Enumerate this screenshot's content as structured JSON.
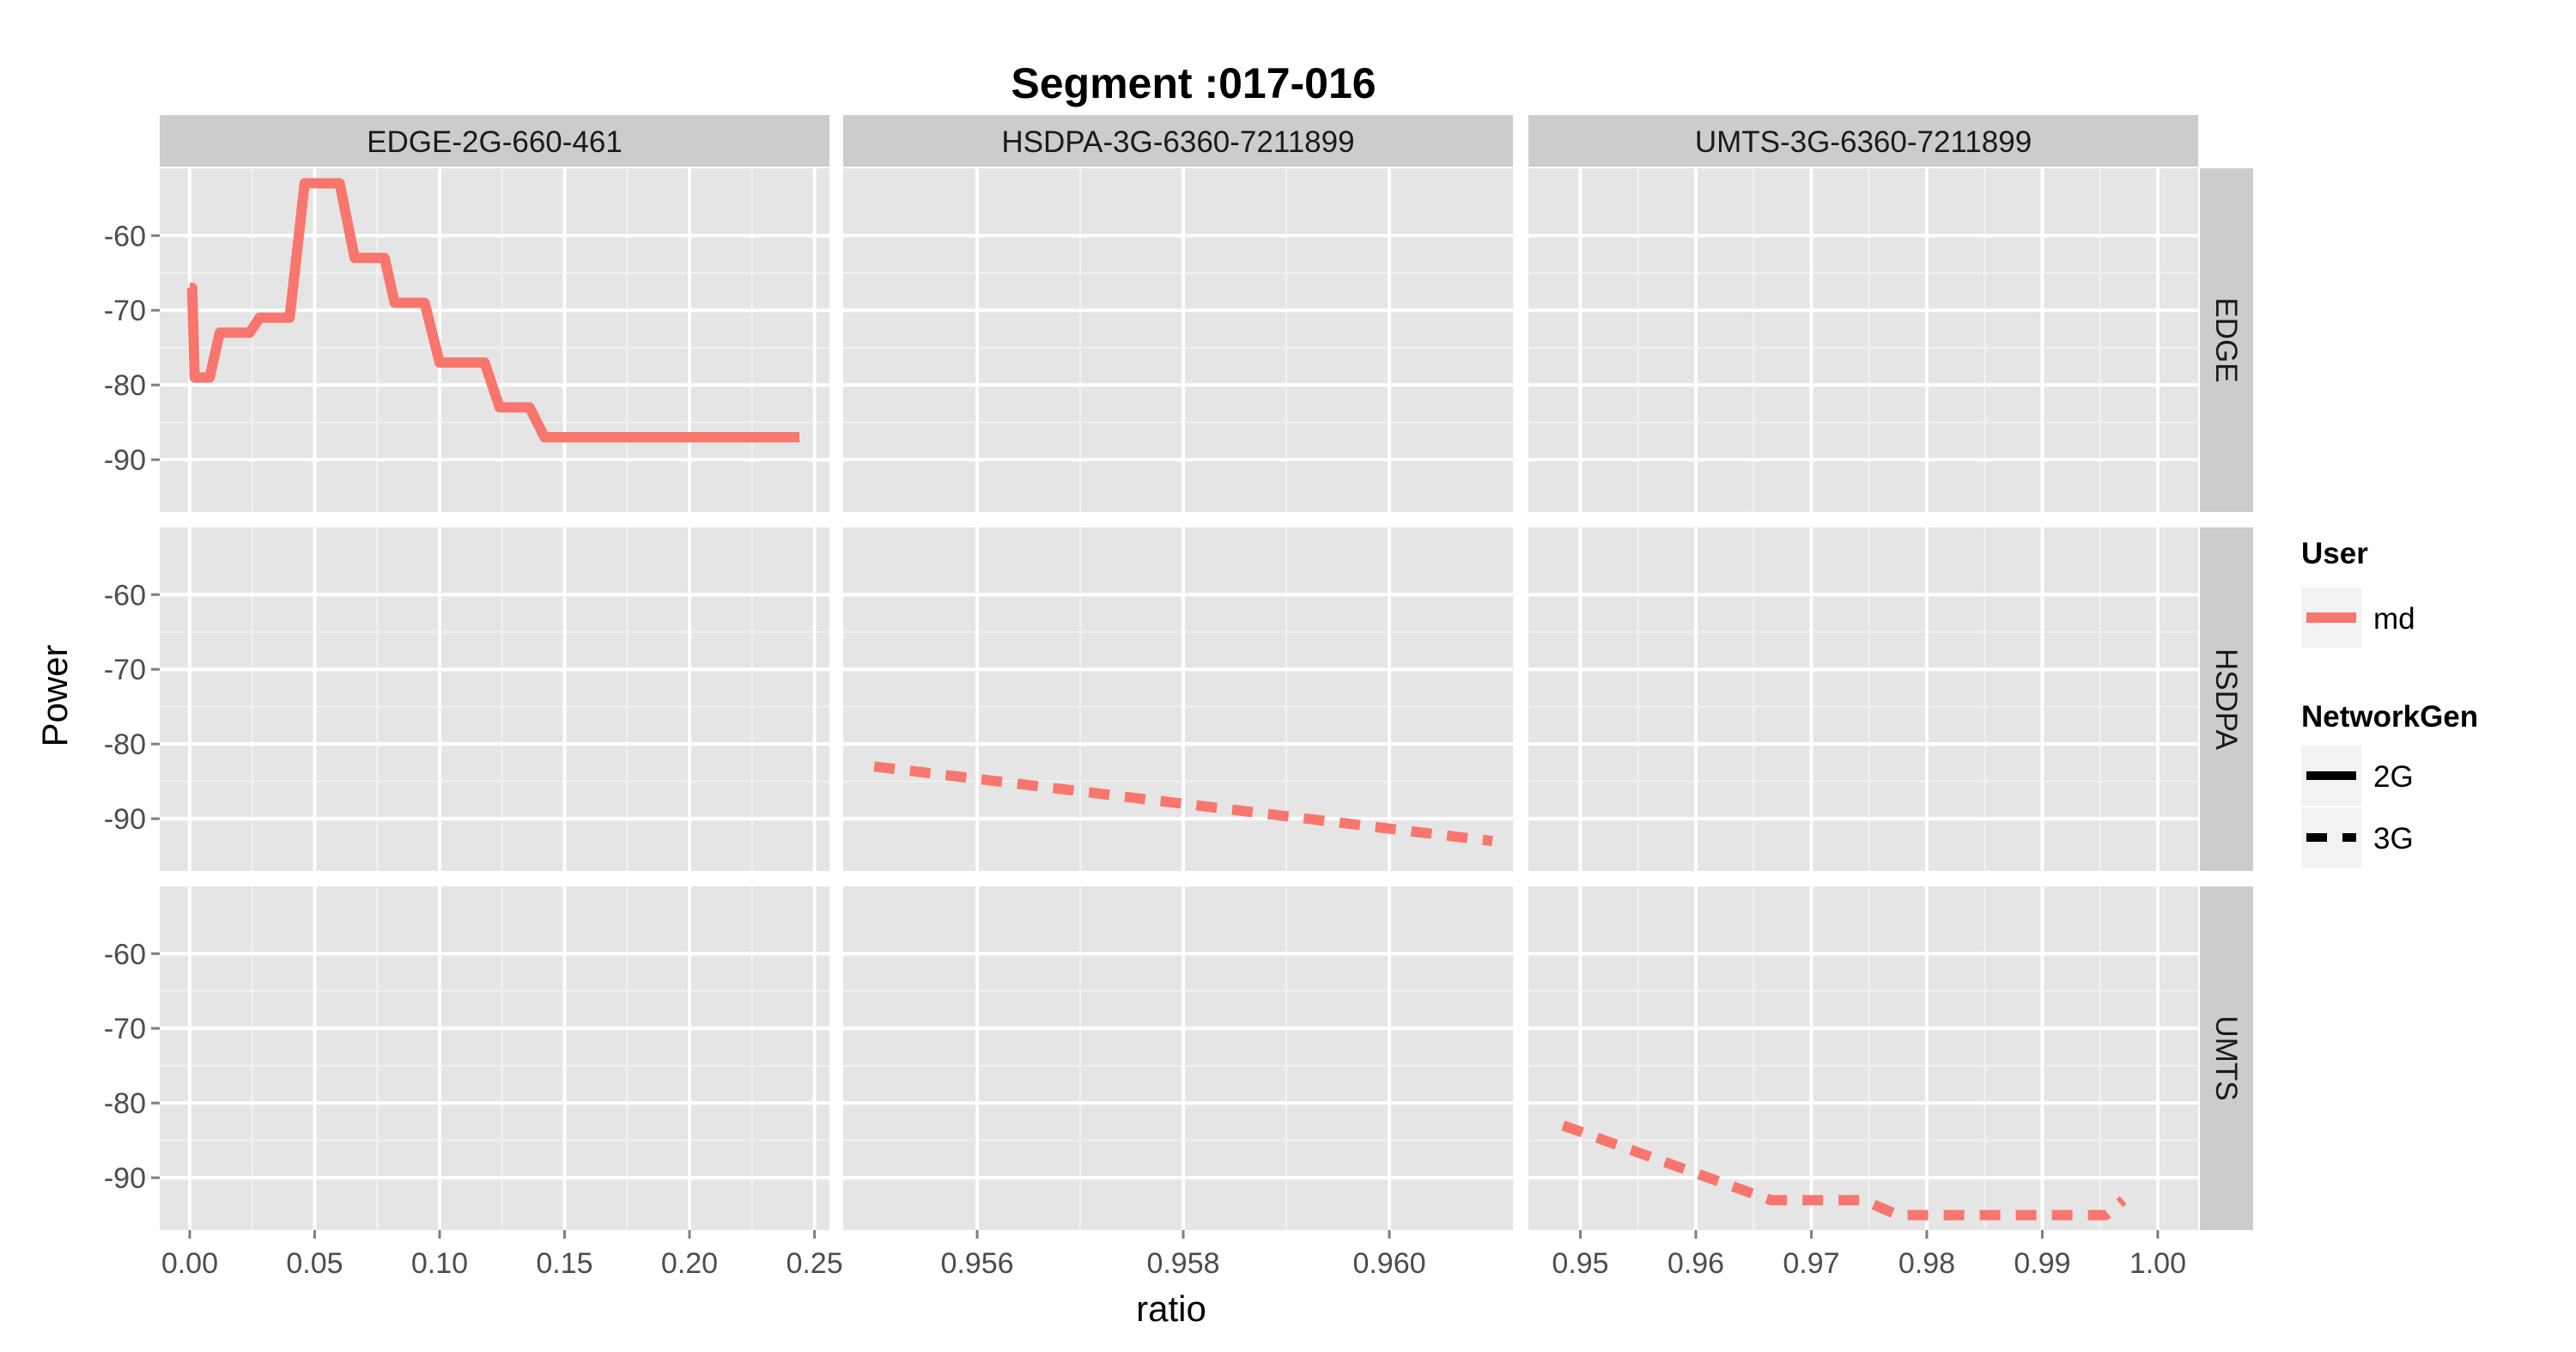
{
  "chart_data": {
    "type": "line",
    "title": "Segment :017-016",
    "xlabel": "ratio",
    "ylabel": "Power",
    "y_ticks": [
      -60,
      -70,
      -80,
      -90
    ],
    "ylim": [
      -97,
      -51
    ],
    "grid": true,
    "column_facets": [
      "EDGE-2G-660-461",
      "HSDPA-3G-6360-7211899",
      "UMTS-3G-6360-7211899"
    ],
    "row_facets": [
      "EDGE",
      "HSDPA",
      "UMTS"
    ],
    "columns": [
      {
        "xlim": [
          -0.012,
          0.256
        ],
        "x_ticks": [
          0.0,
          0.05,
          0.1,
          0.15,
          0.2,
          0.25
        ],
        "x_tick_labels": [
          "0.00",
          "0.05",
          "0.10",
          "0.15",
          "0.20",
          "0.25"
        ]
      },
      {
        "xlim": [
          0.9547,
          0.9612
        ],
        "x_ticks": [
          0.956,
          0.958,
          0.96
        ],
        "x_tick_labels": [
          "0.956",
          "0.958",
          "0.960"
        ]
      },
      {
        "xlim": [
          0.9455,
          1.0035
        ],
        "x_ticks": [
          0.95,
          0.96,
          0.97,
          0.98,
          0.99,
          1.0
        ],
        "x_tick_labels": [
          "0.95",
          "0.96",
          "0.97",
          "0.98",
          "0.99",
          "1.00"
        ]
      }
    ],
    "series": [
      {
        "row": 0,
        "col": 0,
        "user": "md",
        "network_gen": "2G",
        "linetype": "solid",
        "x": [
          0.0,
          0.001,
          0.002,
          0.004,
          0.008,
          0.012,
          0.02,
          0.024,
          0.028,
          0.036,
          0.04,
          0.046,
          0.048,
          0.06,
          0.066,
          0.072,
          0.078,
          0.082,
          0.088,
          0.094,
          0.1,
          0.112,
          0.118,
          0.124,
          0.136,
          0.142,
          0.148,
          0.244
        ],
        "y": [
          -67,
          -67,
          -79,
          -79,
          -79,
          -73,
          -73,
          -73,
          -71,
          -71,
          -71,
          -53,
          -53,
          -53,
          -63,
          -63,
          -63,
          -69,
          -69,
          -69,
          -77,
          -77,
          -77,
          -83,
          -83,
          -87,
          -87,
          -87
        ]
      },
      {
        "row": 1,
        "col": 1,
        "user": "md",
        "network_gen": "3G",
        "linetype": "dashed",
        "x": [
          0.955,
          0.961
        ],
        "y": [
          -83,
          -93
        ]
      },
      {
        "row": 2,
        "col": 2,
        "user": "md",
        "network_gen": "3G",
        "linetype": "dashed",
        "x": [
          0.9485,
          0.9665,
          0.97,
          0.9745,
          0.9775,
          0.9955,
          0.997
        ],
        "y": [
          -83,
          -93,
          -93,
          -93,
          -95,
          -95,
          -93
        ]
      }
    ],
    "line_color": "#F8766D",
    "legend": {
      "placement": "right",
      "user_title": "User",
      "user_items": [
        {
          "label": "md",
          "color": "#F8766D"
        }
      ],
      "network_title": "NetworkGen",
      "network_items": [
        {
          "label": "2G",
          "linetype": "solid"
        },
        {
          "label": "3G",
          "linetype": "dashed"
        }
      ]
    }
  }
}
